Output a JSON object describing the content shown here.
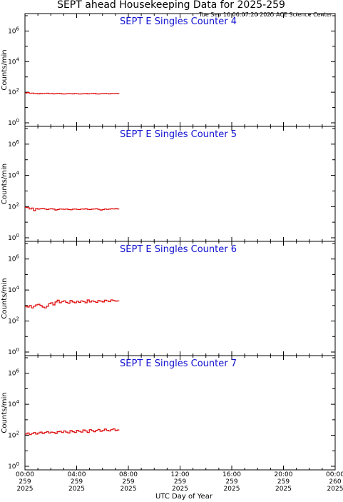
{
  "page": {
    "title": "SEPT ahead Housekeeping Data for 2025-259",
    "timestamp": "Tue Sep 16 06:07:20 2025 ACE Science Center",
    "xlabel": "UTC Day of Year"
  },
  "colors": {
    "panel_title": "#1010d0",
    "series": "#dd0000",
    "axes": "#000000"
  },
  "chart_data": [
    {
      "type": "line",
      "step": true,
      "yscale": "log",
      "title": "SEPT E Singles Counter 4",
      "ylabel": "Counts/min",
      "ylim_exp": [
        0,
        7
      ],
      "ytick_exps": [
        0,
        2,
        4,
        6
      ],
      "xlim_hours": [
        0,
        24
      ],
      "xtick_labels": [
        [
          "00:00",
          "259",
          "2025"
        ],
        [
          "04:00",
          "259",
          "2025"
        ],
        [
          "08:00",
          "259",
          "2025"
        ],
        [
          "12:00",
          "259",
          "2025"
        ],
        [
          "16:00",
          "259",
          "2025"
        ],
        [
          "20:00",
          "259",
          "2025"
        ],
        [
          "00:00",
          "260",
          "2025"
        ]
      ],
      "series": [
        {
          "start_hour": 0,
          "end_hour": 7.3,
          "values": [
            90,
            95,
            85,
            88,
            80,
            82,
            78,
            85,
            80,
            84,
            86,
            80,
            82,
            78,
            80,
            85,
            82,
            78,
            76,
            80,
            84,
            80,
            78,
            82,
            80,
            76,
            78,
            80,
            84,
            78,
            80,
            82,
            85,
            78,
            76,
            80,
            82,
            84,
            80,
            78,
            82,
            80,
            84,
            82
          ]
        }
      ]
    },
    {
      "type": "line",
      "step": true,
      "yscale": "log",
      "title": "SEPT E Singles Counter 5",
      "ylabel": "Counts/min",
      "ylim_exp": [
        0,
        7
      ],
      "ytick_exps": [
        0,
        2,
        4,
        6
      ],
      "xlim_hours": [
        0,
        24
      ],
      "xtick_labels": [
        [
          "00:00",
          "259",
          "2025"
        ],
        [
          "04:00",
          "259",
          "2025"
        ],
        [
          "08:00",
          "259",
          "2025"
        ],
        [
          "12:00",
          "259",
          "2025"
        ],
        [
          "16:00",
          "259",
          "2025"
        ],
        [
          "20:00",
          "259",
          "2025"
        ],
        [
          "00:00",
          "260",
          "2025"
        ]
      ],
      "series": [
        {
          "start_hour": 0,
          "end_hour": 7.3,
          "values": [
            90,
            85,
            70,
            80,
            55,
            75,
            68,
            72,
            75,
            70,
            65,
            70,
            72,
            68,
            60,
            65,
            70,
            68,
            66,
            70,
            65,
            62,
            68,
            70,
            66,
            64,
            70,
            68,
            72,
            66,
            64,
            68,
            70,
            72,
            66,
            60,
            64,
            70,
            66,
            68,
            72,
            70,
            74,
            70
          ]
        }
      ]
    },
    {
      "type": "line",
      "step": true,
      "yscale": "log",
      "title": "SEPT E Singles Counter 6",
      "ylabel": "Counts/min",
      "ylim_exp": [
        0,
        7
      ],
      "ytick_exps": [
        0,
        2,
        4,
        6
      ],
      "xlim_hours": [
        0,
        24
      ],
      "xtick_labels": [
        [
          "00:00",
          "259",
          "2025"
        ],
        [
          "04:00",
          "259",
          "2025"
        ],
        [
          "08:00",
          "259",
          "2025"
        ],
        [
          "12:00",
          "259",
          "2025"
        ],
        [
          "16:00",
          "259",
          "2025"
        ],
        [
          "20:00",
          "259",
          "2025"
        ],
        [
          "00:00",
          "260",
          "2025"
        ]
      ],
      "series": [
        {
          "start_hour": 0,
          "end_hour": 7.3,
          "values": [
            900,
            800,
            1000,
            700,
            900,
            1100,
            1200,
            1000,
            800,
            700,
            900,
            1300,
            1500,
            1100,
            1700,
            2200,
            1500,
            1800,
            2000,
            1600,
            1400,
            2100,
            1700,
            1500,
            1900,
            1600,
            2000,
            1800,
            1500,
            2300,
            1700,
            2000,
            1800,
            1600,
            2100,
            1900,
            1700,
            2200,
            2000,
            1800,
            2300,
            2100,
            1900,
            2000
          ]
        }
      ]
    },
    {
      "type": "line",
      "step": true,
      "yscale": "log",
      "title": "SEPT E Singles Counter 7",
      "ylabel": "Counts/min",
      "ylim_exp": [
        0,
        7
      ],
      "ytick_exps": [
        0,
        2,
        4,
        6
      ],
      "xlim_hours": [
        0,
        24
      ],
      "xtick_labels": [
        [
          "00:00",
          "259",
          "2025"
        ],
        [
          "04:00",
          "259",
          "2025"
        ],
        [
          "08:00",
          "259",
          "2025"
        ],
        [
          "12:00",
          "259",
          "2025"
        ],
        [
          "16:00",
          "259",
          "2025"
        ],
        [
          "20:00",
          "259",
          "2025"
        ],
        [
          "00:00",
          "260",
          "2025"
        ]
      ],
      "series": [
        {
          "start_hour": 0,
          "end_hour": 7.3,
          "values": [
            120,
            140,
            110,
            130,
            150,
            120,
            140,
            160,
            130,
            150,
            170,
            140,
            160,
            150,
            130,
            170,
            180,
            150,
            190,
            160,
            140,
            200,
            170,
            150,
            210,
            180,
            160,
            220,
            190,
            150,
            230,
            200,
            170,
            210,
            240,
            180,
            200,
            250,
            210,
            190,
            230,
            260,
            200,
            220
          ]
        }
      ]
    }
  ]
}
